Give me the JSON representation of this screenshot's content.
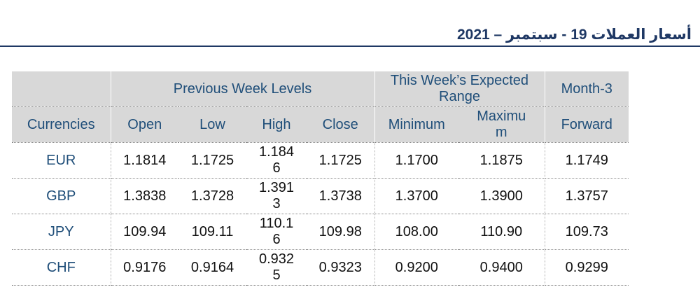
{
  "title": "أسعار العملات 19 - سبتمبر – 2021",
  "table": {
    "group_headers": {
      "previous_week": "Previous Week Levels",
      "expected_range": "This Week’s Expected Range",
      "month3": "Month-3"
    },
    "columns": {
      "currencies": "Currencies",
      "open": "Open",
      "low": "Low",
      "high": "High",
      "close": "Close",
      "minimum": "Minimum",
      "maximum": "Maximum",
      "forward": "Forward"
    },
    "rows": [
      {
        "currency": "EUR",
        "open": "1.1814",
        "low": "1.1725",
        "high": "1.1846",
        "close": "1.1725",
        "minimum": "1.1700",
        "maximum": "1.1875",
        "forward": "1.1749"
      },
      {
        "currency": "GBP",
        "open": "1.3838",
        "low": "1.3728",
        "high": "1.3913",
        "close": "1.3738",
        "minimum": "1.3700",
        "maximum": "1.3900",
        "forward": "1.3757"
      },
      {
        "currency": "JPY",
        "open": "109.94",
        "low": "109.11",
        "high": "110.16",
        "close": "109.98",
        "minimum": "108.00",
        "maximum": "110.90",
        "forward": "109.73"
      },
      {
        "currency": "CHF",
        "open": "0.9176",
        "low": "0.9164",
        "high": "0.9325",
        "close": "0.9323",
        "minimum": "0.9200",
        "maximum": "0.9400",
        "forward": "0.9299"
      }
    ]
  }
}
